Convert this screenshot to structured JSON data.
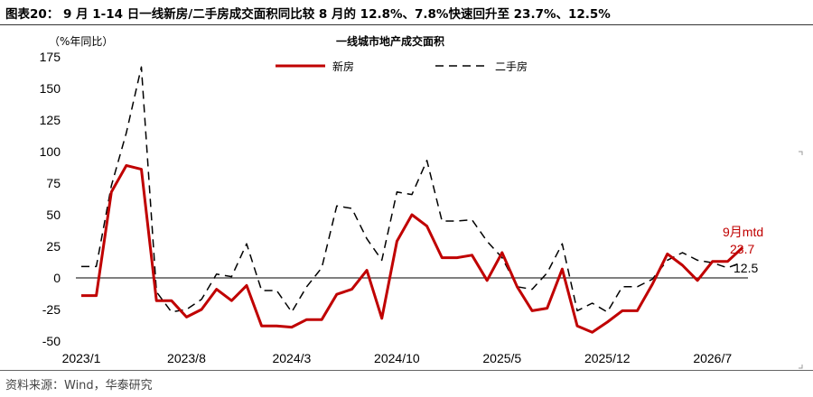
{
  "header": {
    "title": "图表20： 9 月 1-14 日一线新房/二手房成交面积同比较 8 月的 12.8%、7.8%快速回升至 23.7%、12.5%",
    "source": "资料来源：Wind，华泰研究"
  },
  "colors": {
    "new": "#C00000",
    "second": "#000000",
    "axis": "#000000"
  },
  "chart_data": {
    "type": "line",
    "title": "一线城市地产成交面积",
    "ylabel": "（%年同比）",
    "xlabel": "",
    "ylim": [
      -50,
      175
    ],
    "yticks": [
      -50,
      -25,
      0,
      25,
      50,
      75,
      100,
      125,
      150,
      175
    ],
    "x": [
      "2023/1",
      "2023/2",
      "2023/3",
      "2023/4",
      "2023/5",
      "2023/6",
      "2023/7",
      "2023/8",
      "2023/9",
      "2023/10",
      "2023/11",
      "2023/12",
      "2024/1",
      "2024/2",
      "2024/3",
      "2024/4",
      "2024/5",
      "2024/6",
      "2024/7",
      "2024/8",
      "2024/9",
      "2024/10",
      "2024/11",
      "2024/12",
      "2025/1",
      "2025/2",
      "2025/3",
      "2025/4",
      "2025/5",
      "2025/6",
      "2025/7",
      "2025/8",
      "2025/9",
      "2025/10",
      "2025/11",
      "2025/12",
      "2026/1",
      "2026/2",
      "2026/3",
      "2026/4",
      "2026/5",
      "2026/6",
      "2026/7",
      "2026/8",
      "2026/9"
    ],
    "xtick_labels": [
      "2023/1",
      "2023/8",
      "2024/3",
      "2024/10",
      "2025/5",
      "2025/12",
      "2026/7"
    ],
    "legend_position": "top-center",
    "series": [
      {
        "name": "新房",
        "color": "#C00000",
        "style": "solid",
        "values": [
          -14,
          -14,
          68,
          89,
          86,
          -18,
          -18,
          -31,
          -25,
          -9,
          -18,
          -6,
          -38,
          -38,
          -39,
          -33,
          -33,
          -13,
          -9,
          6,
          -32,
          29,
          50,
          41,
          16,
          16,
          18,
          -2,
          20,
          -7,
          -26,
          -24,
          7,
          -38,
          -43,
          -35,
          -26,
          -26,
          -5,
          19,
          10,
          -2,
          13,
          13,
          24
        ]
      },
      {
        "name": "二手房",
        "color": "#000000",
        "style": "dashed",
        "values": [
          9,
          9,
          73,
          115,
          167,
          -11,
          -27,
          -25,
          -17,
          3,
          1,
          27,
          -10,
          -10,
          -27,
          -7,
          8,
          57,
          55,
          31,
          14,
          68,
          66,
          93,
          45,
          45,
          46,
          29,
          16,
          -7,
          -9,
          4,
          27,
          -26,
          -20,
          -27,
          -7,
          -7,
          -1,
          14,
          20,
          14,
          12,
          8,
          12.5
        ]
      }
    ],
    "annotations": [
      {
        "text": "9月mtd",
        "color": "#C00000"
      },
      {
        "text": "23.7",
        "color": "#C00000"
      },
      {
        "text": "12.5",
        "color": "#000000"
      }
    ]
  }
}
